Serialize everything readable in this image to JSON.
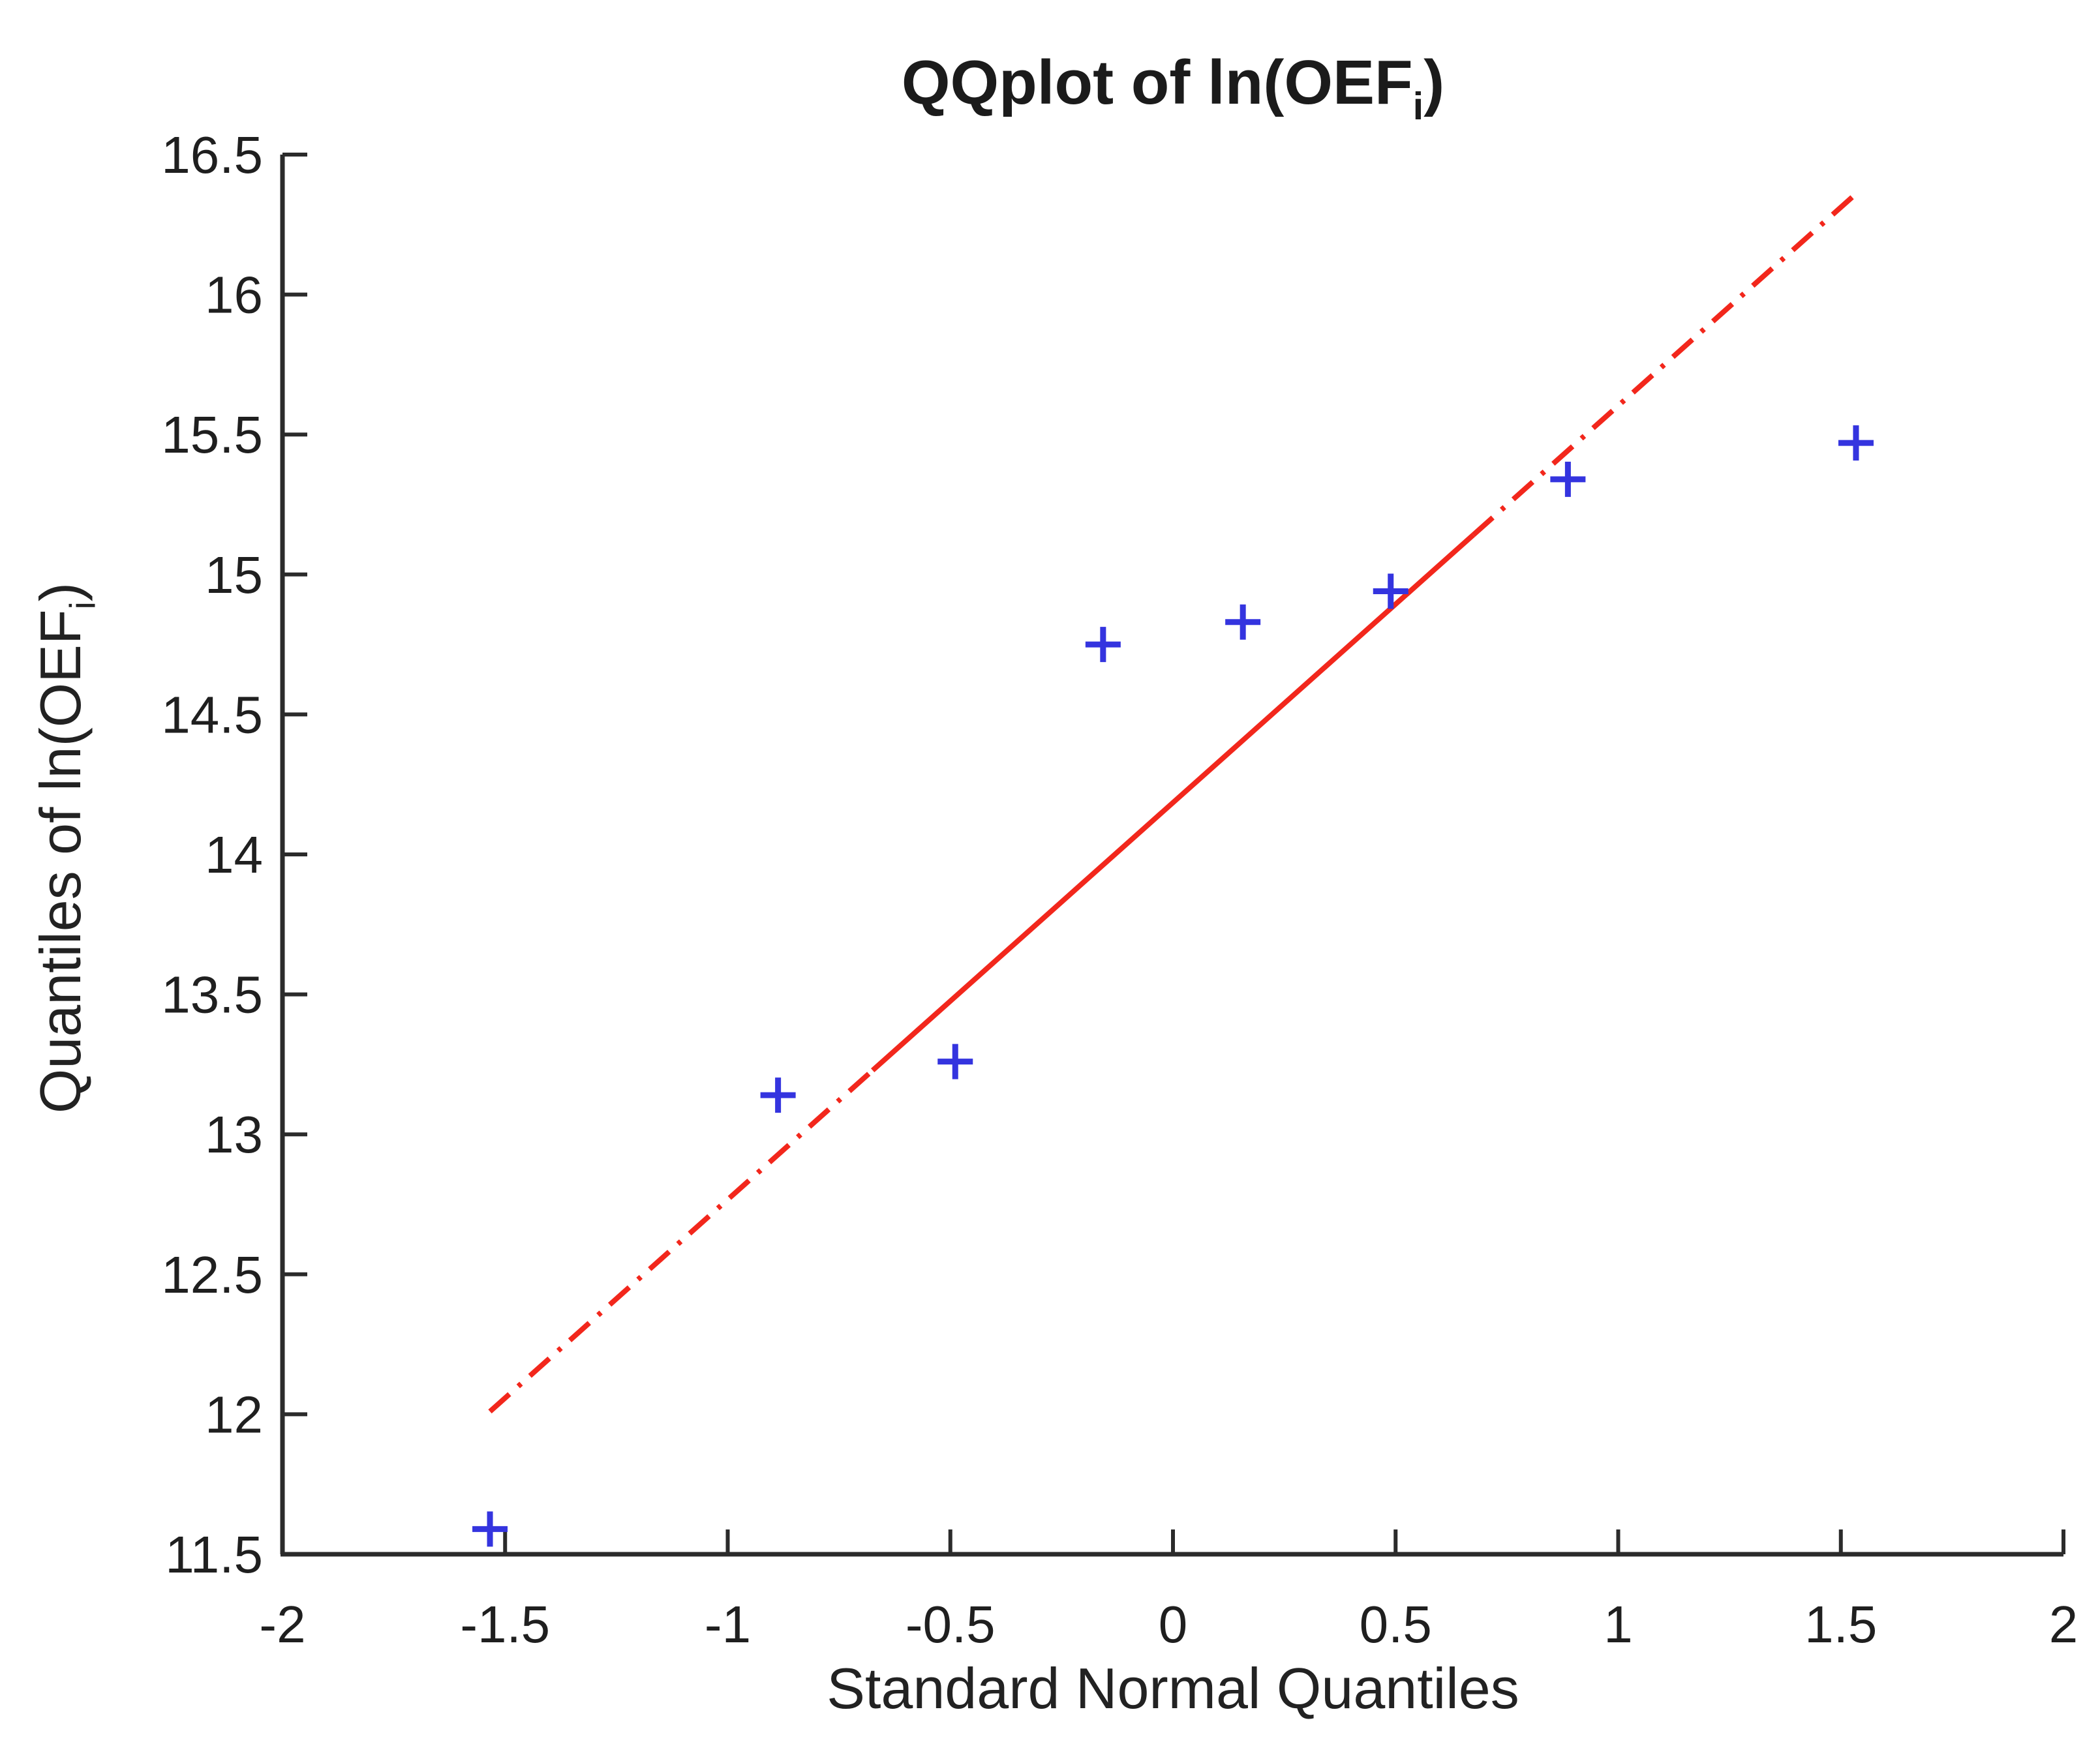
{
  "title": {
    "prefix": "QQplot of ln(OEF",
    "sub": "i",
    "suffix": ")"
  },
  "x_axis": {
    "label": "Standard Normal Quantiles",
    "min": -2,
    "max": 2,
    "ticks": [
      {
        "value": -2,
        "label": "-2"
      },
      {
        "value": -1.5,
        "label": "-1.5"
      },
      {
        "value": -1,
        "label": "-1"
      },
      {
        "value": -0.5,
        "label": "-0.5"
      },
      {
        "value": 0,
        "label": "0"
      },
      {
        "value": 0.5,
        "label": "0.5"
      },
      {
        "value": 1,
        "label": "1"
      },
      {
        "value": 1.5,
        "label": "1.5"
      },
      {
        "value": 2,
        "label": "2"
      }
    ]
  },
  "y_axis": {
    "label_prefix": "Quantiles of ln(OEF",
    "label_sub": "i",
    "label_suffix": ")",
    "min": 11.5,
    "max": 16.5,
    "ticks": [
      {
        "value": 16.5,
        "label": "16.5"
      },
      {
        "value": 16,
        "label": "16"
      },
      {
        "value": 15.5,
        "label": "15.5"
      },
      {
        "value": 15,
        "label": "15"
      },
      {
        "value": 14.5,
        "label": "14.5"
      },
      {
        "value": 14,
        "label": "14"
      },
      {
        "value": 13.5,
        "label": "13.5"
      },
      {
        "value": 13,
        "label": "13"
      },
      {
        "value": 12.5,
        "label": "12.5"
      },
      {
        "value": 12,
        "label": "12"
      },
      {
        "value": 11.5,
        "label": "11.5"
      }
    ]
  },
  "colors": {
    "marker_blue": "#3434df",
    "line_red": "#f2271c",
    "axis": "#2b2b2b",
    "text": "#1f1f1f"
  },
  "chart_data": {
    "type": "scatter",
    "title": "QQplot of ln(OEF_i)",
    "xlabel": "Standard Normal Quantiles",
    "ylabel": "Quantiles of ln(OEF_i)",
    "xlim": [
      -2,
      2
    ],
    "ylim": [
      11.5,
      16.5
    ],
    "grid": false,
    "marker": "+",
    "points": {
      "x": [
        -1.534,
        -0.887,
        -0.489,
        -0.157,
        0.157,
        0.489,
        0.887,
        1.534
      ],
      "y": [
        11.59,
        13.14,
        13.26,
        14.75,
        14.83,
        14.94,
        15.34,
        15.47
      ]
    },
    "reference_line": {
      "style": "dash-dot",
      "x1": -1.534,
      "y1": 12.01,
      "x2": 1.534,
      "y2": 16.36,
      "solid_between": [
        -0.6745,
        0.6745
      ]
    }
  }
}
